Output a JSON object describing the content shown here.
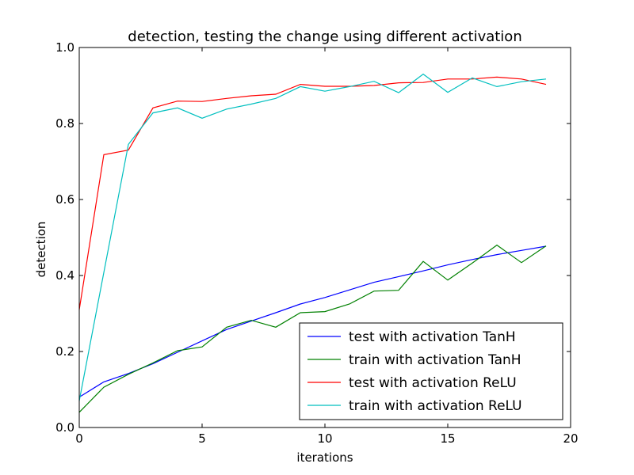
{
  "chart_data": {
    "type": "line",
    "title": "detection, testing the change using different activation",
    "xlabel": "iterations",
    "ylabel": "detection",
    "xlim": [
      0,
      20
    ],
    "ylim": [
      0.0,
      1.0
    ],
    "xticks": [
      0,
      5,
      10,
      15,
      20
    ],
    "xtick_labels": [
      "0",
      "5",
      "10",
      "15",
      "20"
    ],
    "yticks": [
      0.0,
      0.2,
      0.4,
      0.6,
      0.8,
      1.0
    ],
    "ytick_labels": [
      "0.0",
      "0.2",
      "0.4",
      "0.6",
      "0.8",
      "1.0"
    ],
    "grid": false,
    "legend_position": "lower-right",
    "x": [
      0,
      1,
      2,
      3,
      4,
      5,
      6,
      7,
      8,
      9,
      10,
      11,
      12,
      13,
      14,
      15,
      16,
      17,
      18,
      19
    ],
    "series": [
      {
        "name": "test with activation TanH",
        "color": "#0000ff",
        "values": [
          0.08,
          0.12,
          0.142,
          0.168,
          0.198,
          0.228,
          0.258,
          0.28,
          0.302,
          0.325,
          0.342,
          0.362,
          0.382,
          0.397,
          0.412,
          0.428,
          0.442,
          0.455,
          0.466,
          0.477
        ]
      },
      {
        "name": "train with activation TanH",
        "color": "#008000",
        "values": [
          0.04,
          0.106,
          0.14,
          0.17,
          0.202,
          0.212,
          0.264,
          0.282,
          0.264,
          0.302,
          0.305,
          0.325,
          0.359,
          0.361,
          0.437,
          0.388,
          0.433,
          0.48,
          0.434,
          0.478
        ]
      },
      {
        "name": "test with activation ReLU",
        "color": "#ff0000",
        "values": [
          0.31,
          0.718,
          0.73,
          0.841,
          0.859,
          0.858,
          0.866,
          0.873,
          0.877,
          0.903,
          0.898,
          0.898,
          0.9,
          0.907,
          0.908,
          0.917,
          0.917,
          0.922,
          0.917,
          0.903
        ]
      },
      {
        "name": "train with activation ReLU",
        "color": "#00bfbf",
        "values": [
          0.07,
          0.408,
          0.745,
          0.828,
          0.841,
          0.814,
          0.838,
          0.851,
          0.866,
          0.897,
          0.885,
          0.897,
          0.911,
          0.881,
          0.93,
          0.882,
          0.92,
          0.897,
          0.91,
          0.917
        ]
      }
    ]
  }
}
